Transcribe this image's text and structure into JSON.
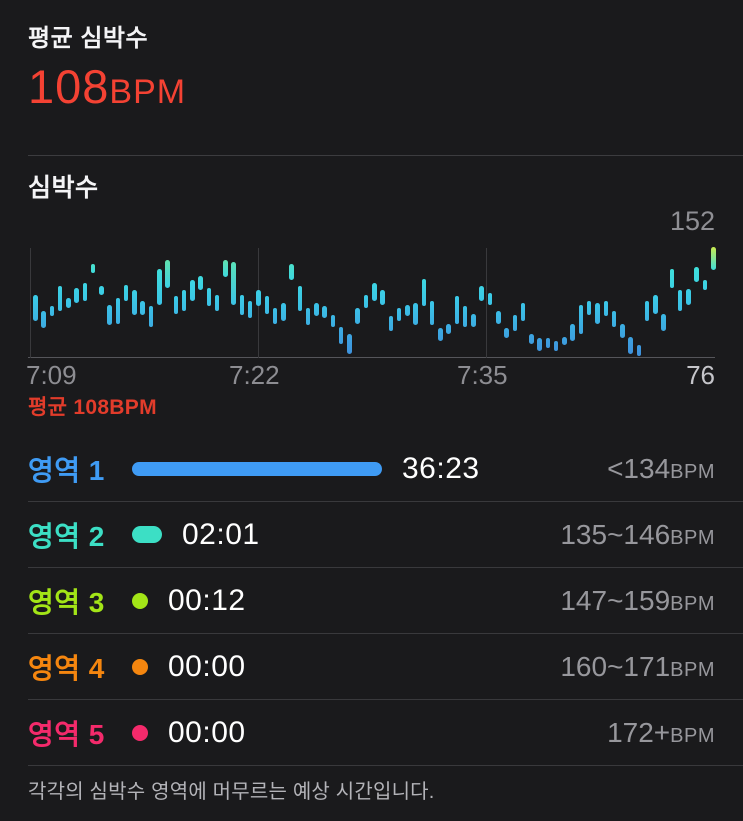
{
  "header": {
    "label": "평균 심박수",
    "value": "108",
    "unit": "BPM"
  },
  "section": {
    "title": "심박수",
    "y_max_label": "152",
    "y_min_label": "76",
    "x_ticks": [
      "7:09",
      "7:22",
      "7:35"
    ],
    "avg_annotation": "평균 108BPM"
  },
  "chart_data": {
    "type": "bar",
    "subtype": "floating-range-bars",
    "title": "심박수",
    "ylabel": "BPM",
    "ylim": [
      76,
      152
    ],
    "x_tick_labels": [
      "7:09",
      "7:22",
      "7:35"
    ],
    "grid": "vertical-only",
    "annotations": {
      "y_max": "152",
      "y_min": "76",
      "average": "평균 108BPM",
      "average_bpm": 108
    },
    "bars_bpm_ranges": [
      [
        101,
        119
      ],
      [
        96,
        108
      ],
      [
        104,
        111
      ],
      [
        108,
        125
      ],
      [
        110,
        117
      ],
      [
        113,
        124
      ],
      [
        115,
        127
      ],
      [
        134,
        140
      ],
      [
        119,
        125
      ],
      [
        98,
        112
      ],
      [
        99,
        117
      ],
      [
        115,
        126
      ],
      [
        105,
        122
      ],
      [
        105,
        115
      ],
      [
        97,
        111
      ],
      [
        112,
        137
      ],
      [
        124,
        143
      ],
      [
        106,
        118
      ],
      [
        108,
        122
      ],
      [
        115,
        129
      ],
      [
        122,
        132
      ],
      [
        111,
        124
      ],
      [
        108,
        119
      ],
      [
        131,
        143
      ],
      [
        112,
        142
      ],
      [
        105,
        119
      ],
      [
        103,
        115
      ],
      [
        111,
        122
      ],
      [
        106,
        118
      ],
      [
        99,
        110
      ],
      [
        101,
        113
      ],
      [
        129,
        140
      ],
      [
        108,
        125
      ],
      [
        98,
        110
      ],
      [
        104,
        113
      ],
      [
        103,
        111
      ],
      [
        97,
        105
      ],
      [
        85,
        97
      ],
      [
        78,
        92
      ],
      [
        99,
        110
      ],
      [
        110,
        119
      ],
      [
        115,
        127
      ],
      [
        112,
        122
      ],
      [
        94,
        104
      ],
      [
        101,
        110
      ],
      [
        104,
        112
      ],
      [
        98,
        113
      ],
      [
        111,
        130
      ],
      [
        98,
        115
      ],
      [
        87,
        96
      ],
      [
        92,
        99
      ],
      [
        99,
        118
      ],
      [
        97,
        111
      ],
      [
        97,
        106
      ],
      [
        115,
        125
      ],
      [
        112,
        120
      ],
      [
        99,
        108
      ],
      [
        89,
        96
      ],
      [
        94,
        105
      ],
      [
        101,
        113
      ],
      [
        85,
        92
      ],
      [
        80,
        89
      ],
      [
        82,
        89
      ],
      [
        80,
        87
      ],
      [
        84,
        90
      ],
      [
        87,
        99
      ],
      [
        92,
        112
      ],
      [
        105,
        115
      ],
      [
        99,
        113
      ],
      [
        104,
        115
      ],
      [
        97,
        108
      ],
      [
        89,
        99
      ],
      [
        78,
        90
      ],
      [
        77,
        84
      ],
      [
        101,
        115
      ],
      [
        106,
        119
      ],
      [
        94,
        106
      ],
      [
        124,
        137
      ],
      [
        108,
        122
      ],
      [
        112,
        123
      ],
      [
        128,
        138
      ],
      [
        122,
        129
      ],
      [
        136,
        152
      ]
    ],
    "bar_color_scale": [
      {
        "t": 0.0,
        "color": "#3e8fdc"
      },
      {
        "t": 0.55,
        "color": "#3bcbe8"
      },
      {
        "t": 0.82,
        "color": "#3fe0da"
      },
      {
        "t": 0.93,
        "color": "#7ce48e"
      },
      {
        "t": 1.0,
        "color": "#c9ea4e"
      }
    ]
  },
  "zones": [
    {
      "name": "영역 1",
      "color": "#3f9bf4",
      "duration": "36:23",
      "range_value": "<134",
      "range_unit": "BPM",
      "indicator": "bar"
    },
    {
      "name": "영역 2",
      "color": "#3cdfc5",
      "duration": "02:01",
      "range_value": "135~146",
      "range_unit": "BPM",
      "indicator": "pill"
    },
    {
      "name": "영역 3",
      "color": "#a3e517",
      "duration": "00:12",
      "range_value": "147~159",
      "range_unit": "BPM",
      "indicator": "dot"
    },
    {
      "name": "영역 4",
      "color": "#f5860f",
      "duration": "00:00",
      "range_value": "160~171",
      "range_unit": "BPM",
      "indicator": "dot"
    },
    {
      "name": "영역 5",
      "color": "#f42a6b",
      "duration": "00:00",
      "range_value": "172+",
      "range_unit": "BPM",
      "indicator": "dot"
    }
  ],
  "footer": {
    "caption": "각각의 심박수 영역에 머무르는 예상 시간입니다."
  },
  "colors": {
    "background": "#1a1a1c",
    "accent_red": "#f44233",
    "annotation_red": "#e23c2b",
    "axis_gray": "#8d8d92",
    "y_min_gray": "#c5c5ca",
    "divider": "#3c3c3f"
  }
}
